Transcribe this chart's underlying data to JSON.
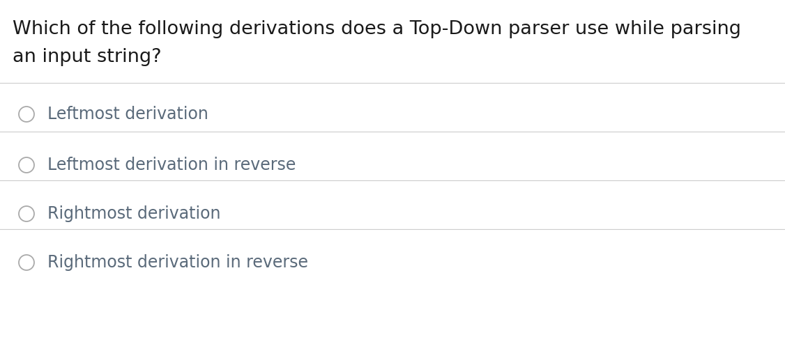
{
  "question_line1": "Which of the following derivations does a Top-Down parser use while parsing",
  "question_line2": "an input string?",
  "options": [
    "Leftmost derivation",
    "Leftmost derivation in reverse",
    "Rightmost derivation",
    "Rightmost derivation in reverse"
  ],
  "background_color": "#ffffff",
  "question_color": "#1a1a1a",
  "option_text_color": "#5a6a7a",
  "divider_color": "#cccccc",
  "circle_edge_color": "#aaaaaa",
  "question_fontsize": 19.5,
  "option_fontsize": 17,
  "fig_width": 11.26,
  "fig_height": 4.94,
  "dpi": 100
}
